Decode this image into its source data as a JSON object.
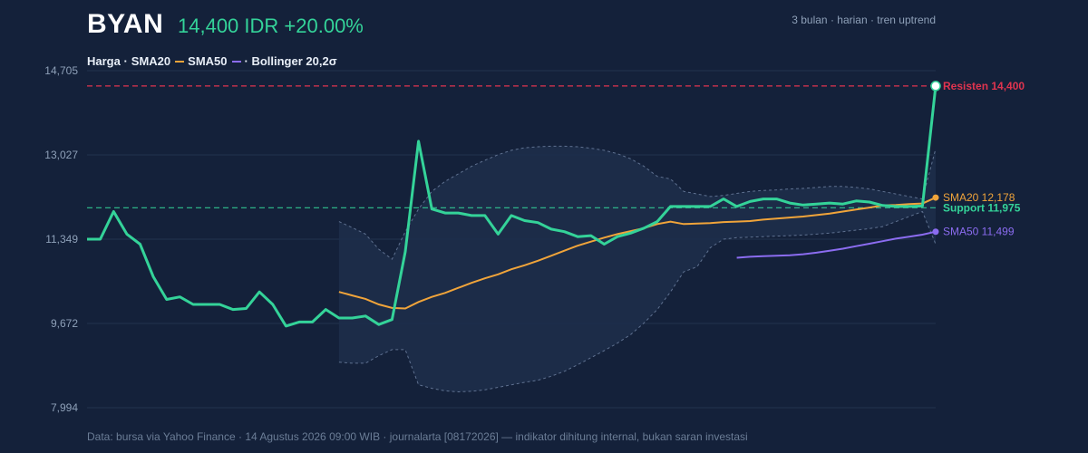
{
  "header": {
    "ticker": "BYAN",
    "price": "14,400 IDR +20.00%",
    "meta": "3 bulan · harian · tren uptrend"
  },
  "legend": {
    "price": "Harga ·",
    "sma20": "SMA20",
    "sma50": "SMA50",
    "bollinger": "· Bollinger 20,2σ"
  },
  "footer": "Data: bursa via Yahoo Finance · 14 Agustus 2026 09:00 WIB · journalarta [08172026] — indikator dihitung internal, bukan saran investasi",
  "colors": {
    "background": "#14213a",
    "price": "#34d399",
    "sma20": "#f0a43a",
    "sma50": "#8b6cf0",
    "band_fill": "#1d2d4a",
    "band_line": "#5f7190",
    "resistance": "#e0344f",
    "support": "#34d399",
    "grid": "#22324f",
    "axis_text": "#8ea0b8"
  },
  "chart_data": {
    "type": "line",
    "ylim": [
      7994,
      14705
    ],
    "yticks": [
      "14,705",
      "13,027",
      "11,349",
      "9,672",
      "7,994"
    ],
    "grid": true,
    "legend_position": "top-left",
    "series": [
      {
        "name": "Harga",
        "values": [
          11350,
          11350,
          11900,
          11450,
          11250,
          10600,
          10150,
          10200,
          10050,
          10050,
          10050,
          9950,
          9970,
          10300,
          10050,
          9620,
          9700,
          9700,
          9950,
          9780,
          9780,
          9820,
          9650,
          9750,
          11100,
          13300,
          11950,
          11870,
          11870,
          11820,
          11820,
          11450,
          11820,
          11720,
          11680,
          11550,
          11500,
          11400,
          11420,
          11250,
          11400,
          11470,
          11570,
          11700,
          12000,
          12000,
          12000,
          12000,
          12150,
          12000,
          12100,
          12150,
          12150,
          12070,
          12030,
          12050,
          12070,
          12050,
          12110,
          12090,
          12020,
          12000,
          12000,
          12010,
          14400
        ]
      },
      {
        "name": "SMA20",
        "values": [
          null,
          null,
          null,
          null,
          null,
          null,
          null,
          null,
          null,
          null,
          null,
          null,
          null,
          null,
          null,
          null,
          null,
          null,
          null,
          10300,
          10230,
          10160,
          10050,
          9980,
          9970,
          10100,
          10200,
          10280,
          10380,
          10480,
          10570,
          10650,
          10750,
          10830,
          10920,
          11020,
          11120,
          11220,
          11300,
          11380,
          11450,
          11510,
          11570,
          11650,
          11700,
          11650,
          11660,
          11670,
          11690,
          11700,
          11710,
          11740,
          11760,
          11780,
          11800,
          11830,
          11860,
          11900,
          11940,
          11980,
          12020,
          12030,
          12050,
          12060,
          12178
        ]
      },
      {
        "name": "SMA50",
        "values": [
          null,
          null,
          null,
          null,
          null,
          null,
          null,
          null,
          null,
          null,
          null,
          null,
          null,
          null,
          null,
          null,
          null,
          null,
          null,
          null,
          null,
          null,
          null,
          null,
          null,
          null,
          null,
          null,
          null,
          null,
          null,
          null,
          null,
          null,
          null,
          null,
          null,
          null,
          null,
          null,
          null,
          null,
          null,
          null,
          null,
          null,
          null,
          null,
          null,
          10980,
          11000,
          11010,
          11020,
          11030,
          11050,
          11080,
          11120,
          11160,
          11210,
          11260,
          11310,
          11360,
          11400,
          11440,
          11499
        ]
      },
      {
        "name": "Bollinger Upper",
        "values": [
          null,
          null,
          null,
          null,
          null,
          null,
          null,
          null,
          null,
          null,
          null,
          null,
          null,
          null,
          null,
          null,
          null,
          null,
          null,
          11700,
          11580,
          11450,
          11150,
          10950,
          11500,
          11950,
          12300,
          12500,
          12650,
          12800,
          12920,
          13030,
          13120,
          13170,
          13190,
          13200,
          13200,
          13190,
          13160,
          13120,
          13050,
          12950,
          12800,
          12600,
          12550,
          12300,
          12250,
          12200,
          12220,
          12260,
          12300,
          12320,
          12330,
          12350,
          12360,
          12380,
          12400,
          12400,
          12380,
          12350,
          12300,
          12250,
          12200,
          12150,
          13150
        ]
      },
      {
        "name": "Bollinger Lower",
        "values": [
          null,
          null,
          null,
          null,
          null,
          null,
          null,
          null,
          null,
          null,
          null,
          null,
          null,
          null,
          null,
          null,
          null,
          null,
          null,
          8900,
          8880,
          8880,
          9030,
          9150,
          9150,
          8450,
          8380,
          8330,
          8310,
          8320,
          8350,
          8400,
          8450,
          8500,
          8540,
          8620,
          8720,
          8850,
          8990,
          9130,
          9280,
          9450,
          9680,
          9950,
          10300,
          10700,
          10800,
          11180,
          11350,
          11380,
          11390,
          11400,
          11410,
          11420,
          11430,
          11450,
          11470,
          11500,
          11530,
          11560,
          11600,
          11700,
          11800,
          11900,
          11250
        ]
      }
    ],
    "annotations": {
      "resistance": {
        "label": "Resisten 14,400",
        "value": 14400
      },
      "support": {
        "label": "Support 11,975",
        "value": 11975
      },
      "sma20_label": "SMA20 12,178",
      "sma50_label": "SMA50 11,499"
    }
  }
}
